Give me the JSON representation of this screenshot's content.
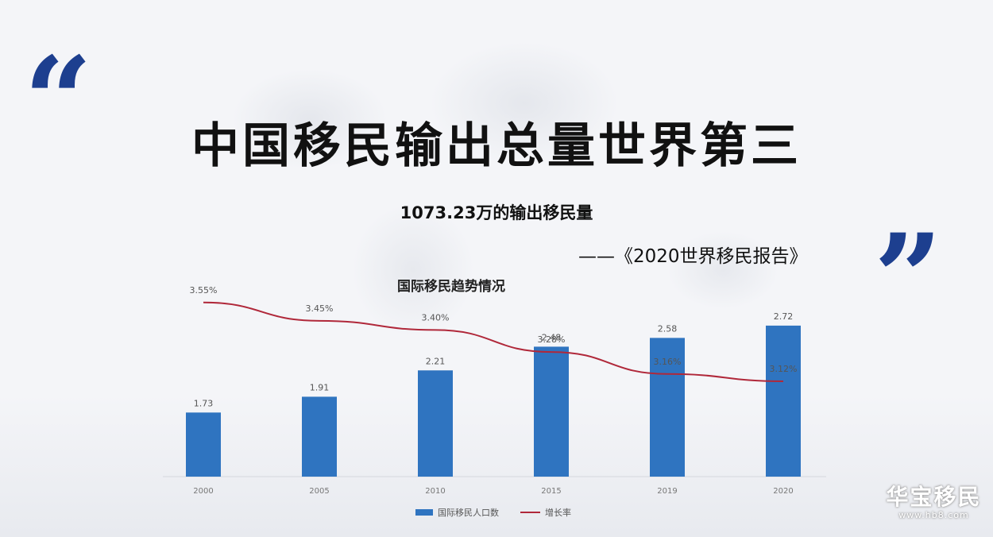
{
  "header": {
    "quote_open": "“",
    "quote_close": "”",
    "title": "中国移民输出总量世界第三",
    "subtitle": "1073.23万的输出移民量",
    "source": "——《2020世界移民报告》"
  },
  "chart_data": {
    "type": "bar",
    "title": "国际移民趋势情况",
    "categories": [
      "2000",
      "2005",
      "2010",
      "2015",
      "2019",
      "2020"
    ],
    "series": [
      {
        "name": "国际移民人口数",
        "type": "bar",
        "values": [
          1.73,
          1.91,
          2.21,
          2.48,
          2.58,
          2.72
        ],
        "labels": [
          "1.73",
          "1.91",
          "2.21",
          "2.48",
          "2.58",
          "2.72"
        ],
        "color": "#2f74c0"
      },
      {
        "name": "增长率",
        "type": "line",
        "values": [
          3.55,
          3.45,
          3.4,
          3.28,
          3.16,
          3.12
        ],
        "labels": [
          "3.55%",
          "3.45%",
          "3.40%",
          "3.28%",
          "3.16%",
          "3.12%"
        ],
        "color": "#b0283a"
      }
    ],
    "legend_position": "bottom-center",
    "grid": false
  },
  "watermark": {
    "text": "华宝移民",
    "url": "www.hb8.com"
  }
}
